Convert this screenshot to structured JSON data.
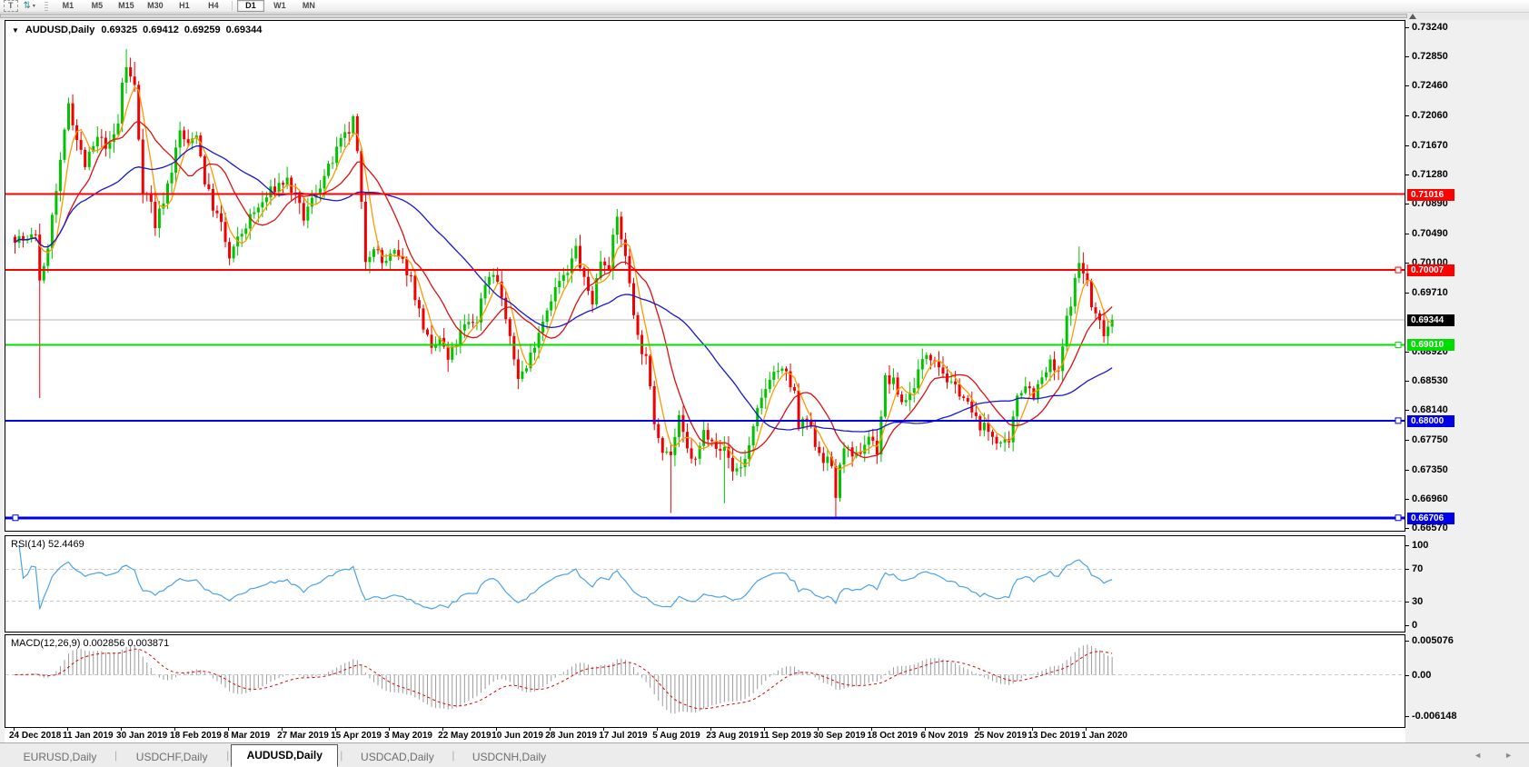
{
  "toolbar": {
    "t_button": "T",
    "timeframes": [
      "M1",
      "M5",
      "M15",
      "M30",
      "H1",
      "H4",
      "D1",
      "W1",
      "MN"
    ],
    "active_timeframe": "D1"
  },
  "chart_header": {
    "symbol": "AUDUSD,Daily",
    "open": "0.69325",
    "high": "0.69412",
    "low": "0.69259",
    "close": "0.69344"
  },
  "chart_data": {
    "type": "candlestick",
    "title": "AUDUSD,Daily",
    "ohlc_display": {
      "open": 0.69325,
      "high": 0.69412,
      "low": 0.69259,
      "close": 0.69344
    },
    "y_axis": {
      "max": 0.7324,
      "min": 0.6657,
      "tick_labels": [
        "0.73240",
        "0.72850",
        "0.72460",
        "0.72060",
        "0.71670",
        "0.71280",
        "0.70890",
        "0.70490",
        "0.70100",
        "0.69710",
        "0.68920",
        "0.68530",
        "0.68140",
        "0.67750",
        "0.67350",
        "0.66960",
        "0.66570"
      ]
    },
    "x_axis": {
      "bars_per_label": 13,
      "labels": [
        "24 Dec 2018",
        "11 Jan 2019",
        "30 Jan 2019",
        "18 Feb 2019",
        "8 Mar 2019",
        "27 Mar 2019",
        "15 Apr 2019",
        "3 May 2019",
        "22 May 2019",
        "10 Jun 2019",
        "28 Jun 2019",
        "17 Jul 2019",
        "5 Aug 2019",
        "23 Aug 2019",
        "11 Sep 2019",
        "30 Sep 2019",
        "18 Oct 2019",
        "6 Nov 2019",
        "25 Nov 2019",
        "13 Dec 2019",
        "1 Jan 2020"
      ]
    },
    "bars": {
      "count": 267,
      "anchors": [
        [
          0,
          0.7045
        ],
        [
          3,
          0.7038
        ],
        [
          5,
          0.705
        ],
        [
          6,
          0.699
        ],
        [
          7,
          0.7
        ],
        [
          9,
          0.707
        ],
        [
          11,
          0.714
        ],
        [
          13,
          0.7225
        ],
        [
          15,
          0.7175
        ],
        [
          17,
          0.714
        ],
        [
          20,
          0.7175
        ],
        [
          23,
          0.7165
        ],
        [
          25,
          0.7195
        ],
        [
          26,
          0.725
        ],
        [
          27,
          0.727
        ],
        [
          29,
          0.7245
        ],
        [
          31,
          0.711
        ],
        [
          33,
          0.709
        ],
        [
          34,
          0.706
        ],
        [
          36,
          0.7095
        ],
        [
          38,
          0.7135
        ],
        [
          40,
          0.7185
        ],
        [
          42,
          0.7165
        ],
        [
          44,
          0.7185
        ],
        [
          46,
          0.712
        ],
        [
          48,
          0.7085
        ],
        [
          50,
          0.706
        ],
        [
          52,
          0.7015
        ],
        [
          54,
          0.704
        ],
        [
          57,
          0.707
        ],
        [
          60,
          0.709
        ],
        [
          62,
          0.7105
        ],
        [
          64,
          0.7115
        ],
        [
          66,
          0.712
        ],
        [
          68,
          0.7095
        ],
        [
          70,
          0.707
        ],
        [
          73,
          0.7105
        ],
        [
          76,
          0.7135
        ],
        [
          79,
          0.717
        ],
        [
          81,
          0.7185
        ],
        [
          82,
          0.72
        ],
        [
          83,
          0.7155
        ],
        [
          85,
          0.7015
        ],
        [
          87,
          0.7035
        ],
        [
          89,
          0.701
        ],
        [
          92,
          0.7022
        ],
        [
          94,
          0.701
        ],
        [
          96,
          0.699
        ],
        [
          98,
          0.6945
        ],
        [
          101,
          0.689
        ],
        [
          103,
          0.691
        ],
        [
          105,
          0.688
        ],
        [
          107,
          0.6905
        ],
        [
          109,
          0.6925
        ],
        [
          112,
          0.6935
        ],
        [
          114,
          0.6985
        ],
        [
          116,
          0.7
        ],
        [
          118,
          0.6965
        ],
        [
          120,
          0.6905
        ],
        [
          122,
          0.686
        ],
        [
          124,
          0.687
        ],
        [
          126,
          0.6905
        ],
        [
          128,
          0.6935
        ],
        [
          130,
          0.6965
        ],
        [
          132,
          0.6985
        ],
        [
          134,
          0.6995
        ],
        [
          136,
          0.703
        ],
        [
          138,
          0.6985
        ],
        [
          140,
          0.696
        ],
        [
          142,
          0.7015
        ],
        [
          144,
          0.701
        ],
        [
          146,
          0.707
        ],
        [
          147,
          0.7045
        ],
        [
          149,
          0.6985
        ],
        [
          151,
          0.691
        ],
        [
          153,
          0.688
        ],
        [
          155,
          0.68
        ],
        [
          157,
          0.6765
        ],
        [
          159,
          0.6755
        ],
        [
          161,
          0.68
        ],
        [
          163,
          0.676
        ],
        [
          165,
          0.6745
        ],
        [
          167,
          0.6785
        ],
        [
          169,
          0.678
        ],
        [
          171,
          0.6755
        ],
        [
          172,
          0.6765
        ],
        [
          174,
          0.6735
        ],
        [
          176,
          0.6738
        ],
        [
          178,
          0.6765
        ],
        [
          180,
          0.681
        ],
        [
          183,
          0.686
        ],
        [
          185,
          0.6868
        ],
        [
          187,
          0.686
        ],
        [
          189,
          0.6835
        ],
        [
          190,
          0.679
        ],
        [
          192,
          0.68
        ],
        [
          194,
          0.677
        ],
        [
          196,
          0.675
        ],
        [
          198,
          0.674
        ],
        [
          199,
          0.67
        ],
        [
          201,
          0.677
        ],
        [
          203,
          0.6745
        ],
        [
          205,
          0.676
        ],
        [
          207,
          0.678
        ],
        [
          209,
          0.676
        ],
        [
          211,
          0.6855
        ],
        [
          213,
          0.685
        ],
        [
          215,
          0.6825
        ],
        [
          217,
          0.6835
        ],
        [
          219,
          0.6865
        ],
        [
          221,
          0.689
        ],
        [
          223,
          0.6885
        ],
        [
          225,
          0.6865
        ],
        [
          227,
          0.6845
        ],
        [
          229,
          0.684
        ],
        [
          231,
          0.682
        ],
        [
          233,
          0.68
        ],
        [
          235,
          0.679
        ],
        [
          237,
          0.678
        ],
        [
          239,
          0.677
        ],
        [
          241,
          0.6765
        ],
        [
          243,
          0.6835
        ],
        [
          245,
          0.685
        ],
        [
          247,
          0.6835
        ],
        [
          249,
          0.6855
        ],
        [
          251,
          0.6875
        ],
        [
          253,
          0.686
        ],
        [
          255,
          0.6935
        ],
        [
          257,
          0.6985
        ],
        [
          258,
          0.701
        ],
        [
          260,
          0.6985
        ],
        [
          261,
          0.695
        ],
        [
          263,
          0.693
        ],
        [
          264,
          0.692
        ],
        [
          266,
          0.69344
        ]
      ],
      "wick_overrides": [
        {
          "i": 6,
          "low": 0.683
        },
        {
          "i": 27,
          "high": 0.7295
        },
        {
          "i": 29,
          "high": 0.7278
        },
        {
          "i": 105,
          "low": 0.6865
        },
        {
          "i": 122,
          "low": 0.6842
        },
        {
          "i": 146,
          "high": 0.7082
        },
        {
          "i": 159,
          "low": 0.6677
        },
        {
          "i": 172,
          "low": 0.669
        },
        {
          "i": 199,
          "low": 0.6671
        },
        {
          "i": 258,
          "high": 0.7032
        }
      ]
    },
    "moving_averages": [
      {
        "period": 5,
        "color": "#FF9900"
      },
      {
        "period": 13,
        "color": "#DE1010"
      },
      {
        "period": 34,
        "color": "#1717CE"
      }
    ],
    "colors": {
      "bull": "#00C400",
      "bear": "#F00000"
    },
    "hlines": [
      {
        "price": 0.71016,
        "label": "0.71016",
        "color": "#FF0000",
        "width": 2,
        "handles": "none"
      },
      {
        "price": 0.70007,
        "label": "0.70007",
        "color": "#FF0000",
        "width": 2,
        "handles": "right"
      },
      {
        "price": 0.6901,
        "label": "0.69010",
        "color": "#00DD00",
        "width": 2,
        "handles": "right"
      },
      {
        "price": 0.68,
        "label": "0.68000",
        "color": "#0000E6",
        "width": 2,
        "handles": "right"
      },
      {
        "price": 0.66706,
        "label": "0.66706",
        "color": "#0000E6",
        "width": 3,
        "handles": "both"
      }
    ],
    "current_price": {
      "value": 0.69344,
      "label": "0.69344",
      "line_color": "#B4B4B4"
    },
    "rsi": {
      "label": "RSI(14) 52.4469",
      "period": 14,
      "value": 52.4469,
      "levels": [
        70,
        30
      ],
      "range": [
        0,
        100
      ],
      "axis_ticks": [
        "100",
        "70",
        "30",
        "0"
      ],
      "line_color": "#4AA3E8"
    },
    "macd": {
      "label": "MACD(12,26,9) 0.002856 0.003871",
      "fast": 12,
      "slow": 26,
      "signal": 9,
      "macd_value": 0.002856,
      "signal_value": 0.003871,
      "range": [
        -0.006148,
        0.005076
      ],
      "axis_ticks": [
        "0.005076",
        "0.00",
        "-0.006148"
      ],
      "hist_color": "#9B9B9B",
      "signal_color": "#E00000"
    }
  },
  "bottom_tabs": {
    "tabs": [
      "EURUSD,Daily",
      "USDCHF,Daily",
      "AUDUSD,Daily",
      "USDCAD,Daily",
      "USDCNH,Daily"
    ],
    "active_index": 2
  },
  "nav_arrows": {
    "left": "◄",
    "right": "►"
  }
}
